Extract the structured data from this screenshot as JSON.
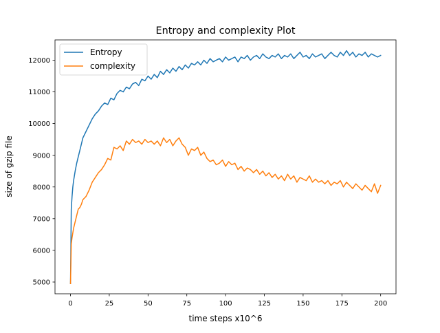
{
  "chart_data": {
    "type": "line",
    "title": "Entropy and complexity Plot",
    "xlabel": "time steps x10^6",
    "ylabel": "size of gzip file",
    "xlim": [
      -9.995,
      209.895
    ],
    "ylim": [
      4630,
      12640
    ],
    "xticks": [
      0,
      25,
      50,
      75,
      100,
      125,
      150,
      175,
      200
    ],
    "yticks": [
      5000,
      6000,
      7000,
      8000,
      9000,
      10000,
      11000,
      12000
    ],
    "grid": false,
    "legend_position": "top-left",
    "x": [
      0,
      0.5,
      1,
      1.5,
      2,
      3,
      4,
      5,
      6,
      7,
      8,
      9,
      10,
      12,
      14,
      16,
      18,
      20,
      22,
      24,
      26,
      28,
      30,
      32,
      34,
      36,
      38,
      40,
      42,
      44,
      46,
      48,
      50,
      52,
      54,
      56,
      58,
      60,
      62,
      64,
      66,
      68,
      70,
      72,
      74,
      76,
      78,
      80,
      82,
      84,
      86,
      88,
      90,
      92,
      94,
      96,
      98,
      100,
      102,
      104,
      106,
      108,
      110,
      112,
      114,
      116,
      118,
      120,
      122,
      124,
      126,
      128,
      130,
      132,
      134,
      136,
      138,
      140,
      142,
      144,
      146,
      148,
      150,
      152,
      154,
      156,
      158,
      160,
      162,
      164,
      166,
      168,
      170,
      172,
      174,
      176,
      178,
      180,
      182,
      184,
      186,
      188,
      190,
      192,
      194,
      196,
      198,
      200
    ],
    "series": [
      {
        "name": "Entropy",
        "color": "#1f77b4",
        "values": [
          4950,
          7300,
          7700,
          8000,
          8200,
          8500,
          8750,
          8950,
          9150,
          9350,
          9550,
          9650,
          9750,
          9950,
          10150,
          10300,
          10400,
          10550,
          10650,
          10600,
          10800,
          10750,
          10950,
          11050,
          11000,
          11150,
          11100,
          11250,
          11300,
          11200,
          11400,
          11350,
          11500,
          11400,
          11550,
          11450,
          11650,
          11550,
          11700,
          11600,
          11750,
          11650,
          11800,
          11700,
          11850,
          11750,
          11900,
          11850,
          11950,
          11850,
          12000,
          11900,
          12050,
          11950,
          12000,
          12050,
          11950,
          12100,
          12000,
          12050,
          12100,
          11950,
          12100,
          12050,
          12150,
          12000,
          12100,
          12150,
          12050,
          12200,
          12100,
          12050,
          12150,
          12100,
          12200,
          12050,
          12150,
          12100,
          12200,
          12050,
          12150,
          12250,
          12100,
          12150,
          12050,
          12200,
          12100,
          12150,
          12200,
          12050,
          12150,
          12250,
          12150,
          12100,
          12250,
          12150,
          12300,
          12150,
          12250,
          12100,
          12200,
          12150,
          12250,
          12100,
          12200,
          12150,
          12100,
          12150
        ]
      },
      {
        "name": "complexity",
        "color": "#ff7f0e",
        "values": [
          4950,
          6200,
          6400,
          6550,
          6700,
          6900,
          7100,
          7300,
          7350,
          7450,
          7600,
          7650,
          7700,
          7900,
          8150,
          8300,
          8450,
          8550,
          8700,
          8900,
          8850,
          9250,
          9200,
          9300,
          9150,
          9450,
          9350,
          9500,
          9400,
          9450,
          9350,
          9500,
          9400,
          9450,
          9350,
          9450,
          9300,
          9550,
          9400,
          9500,
          9300,
          9450,
          9550,
          9350,
          9250,
          9000,
          9200,
          9150,
          9250,
          9000,
          9100,
          8900,
          8800,
          8850,
          8700,
          8750,
          8850,
          8650,
          8800,
          8700,
          8750,
          8550,
          8650,
          8500,
          8600,
          8550,
          8450,
          8550,
          8400,
          8500,
          8350,
          8450,
          8300,
          8400,
          8250,
          8350,
          8200,
          8400,
          8250,
          8350,
          8150,
          8300,
          8250,
          8200,
          8350,
          8150,
          8250,
          8150,
          8200,
          8100,
          8200,
          8050,
          8150,
          8100,
          8200,
          8000,
          8150,
          8050,
          7950,
          8100,
          8000,
          7900,
          8050,
          7950,
          7850,
          8100,
          7800,
          8050
        ]
      }
    ]
  }
}
